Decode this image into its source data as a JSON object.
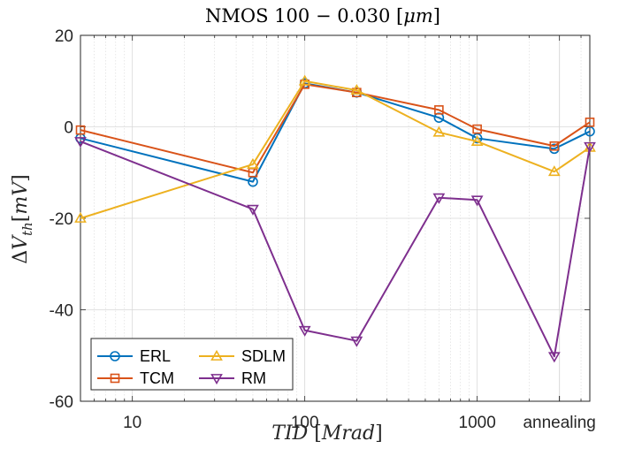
{
  "chart_data": {
    "type": "line",
    "title": "NMOS 100 − 0.030 [μm]",
    "xlabel": "TID [Mrad]",
    "ylabel": "ΔV_th [mV]",
    "x_scale": "log",
    "x": [
      5,
      50,
      100,
      200,
      600,
      1000,
      2800,
      4500
    ],
    "xlim": [
      5,
      4500
    ],
    "ylim": [
      -60,
      20
    ],
    "x_ticks": [
      {
        "value": 10,
        "label": "10"
      },
      {
        "value": 100,
        "label": "100"
      },
      {
        "value": 1000,
        "label": "1000"
      },
      {
        "value": 3000,
        "label": "annealing"
      }
    ],
    "y_ticks": [
      20,
      0,
      -20,
      -40,
      -60
    ],
    "grid": true,
    "legend_position": "bottom-left",
    "series": [
      {
        "name": "ERL",
        "color": "#0072BD",
        "marker": "circle",
        "values": [
          -2.5,
          -12,
          9.5,
          7.5,
          2,
          -2.5,
          -4.8,
          -1
        ]
      },
      {
        "name": "TCM",
        "color": "#D95319",
        "marker": "square",
        "values": [
          -0.7,
          -10,
          9.3,
          7.5,
          3.7,
          -0.5,
          -4.2,
          1
        ]
      },
      {
        "name": "SDLM",
        "color": "#EDB120",
        "marker": "triangle-up",
        "values": [
          -20,
          -8.2,
          10,
          8,
          -1.2,
          -3.2,
          -9.8,
          -4.5
        ]
      },
      {
        "name": "RM",
        "color": "#7E2F8E",
        "marker": "triangle-down",
        "values": [
          -3.2,
          -18,
          -44.5,
          -46.8,
          -15.5,
          -16,
          -50.2,
          -4.3
        ]
      }
    ]
  }
}
